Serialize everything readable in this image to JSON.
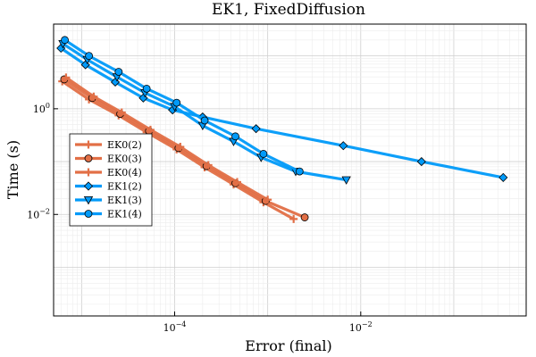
{
  "chart_data": {
    "type": "line",
    "title": "EK1, FixedDiffusion",
    "xlabel": "Error (final)",
    "ylabel": "Time (s)",
    "x_scale": "log",
    "y_scale": "log",
    "xlim": [
      5e-06,
      0.6
    ],
    "ylim": [
      0.00012,
      40
    ],
    "x_ticks": [
      {
        "value": 0.0001,
        "base": "10",
        "exp": "−4"
      },
      {
        "value": 0.01,
        "base": "10",
        "exp": "−2"
      }
    ],
    "y_ticks": [
      {
        "value": 1,
        "base": "10",
        "exp": "0"
      },
      {
        "value": 0.01,
        "base": "10",
        "exp": "−2"
      }
    ],
    "grid": true,
    "legend_position": "left-middle",
    "series": [
      {
        "name": "EK0(2)",
        "color": "#e26f46",
        "marker": "cross",
        "x": [
          6.2e-06,
          1.2e-05,
          2.5e-05,
          5e-05,
          0.000105,
          0.00021,
          0.00043,
          0.0009,
          0.0019
        ],
        "y": [
          3.3,
          1.5,
          0.75,
          0.36,
          0.17,
          0.078,
          0.037,
          0.017,
          0.0082
        ]
      },
      {
        "name": "EK0(3)",
        "color": "#e26f46",
        "marker": "circle",
        "x": [
          6.5e-06,
          1.3e-05,
          2.6e-05,
          5.3e-05,
          0.00011,
          0.00022,
          0.00045,
          0.00095,
          0.0025
        ],
        "y": [
          3.6,
          1.6,
          0.8,
          0.38,
          0.18,
          0.082,
          0.039,
          0.018,
          0.0088
        ]
      },
      {
        "name": "EK0(4)",
        "color": "#e26f46",
        "marker": "cross",
        "x": [
          6.8e-06,
          1.35e-05,
          2.7e-05,
          5.5e-05,
          0.000115,
          0.00023,
          0.00047,
          0.001
        ],
        "y": [
          3.9,
          1.7,
          0.85,
          0.4,
          0.19,
          0.086,
          0.041,
          0.019
        ]
      },
      {
        "name": "EK1(2)",
        "color": "#009af9",
        "marker": "diamond",
        "x": [
          6e-06,
          1.1e-05,
          2.3e-05,
          4.6e-05,
          9.5e-05,
          0.0002,
          0.00075,
          0.0065,
          0.045,
          0.34
        ],
        "y": [
          14,
          6.8,
          3.2,
          1.6,
          0.95,
          0.7,
          0.42,
          0.2,
          0.1,
          0.05
        ]
      },
      {
        "name": "EK1(3)",
        "color": "#009af9",
        "marker": "triangle-down",
        "x": [
          6.3e-06,
          1.15e-05,
          2.4e-05,
          4.8e-05,
          0.0001,
          0.0002,
          0.00043,
          0.00085,
          0.002,
          0.007
        ],
        "y": [
          17,
          8.5,
          4.0,
          2.0,
          1.1,
          0.48,
          0.24,
          0.12,
          0.065,
          0.045
        ]
      },
      {
        "name": "EK1(4)",
        "color": "#009af9",
        "marker": "circle",
        "x": [
          6.6e-06,
          1.2e-05,
          2.5e-05,
          5e-05,
          0.000105,
          0.00021,
          0.00045,
          0.0009,
          0.0022
        ],
        "y": [
          20,
          10,
          5.0,
          2.4,
          1.3,
          0.6,
          0.3,
          0.14,
          0.065
        ]
      }
    ]
  }
}
